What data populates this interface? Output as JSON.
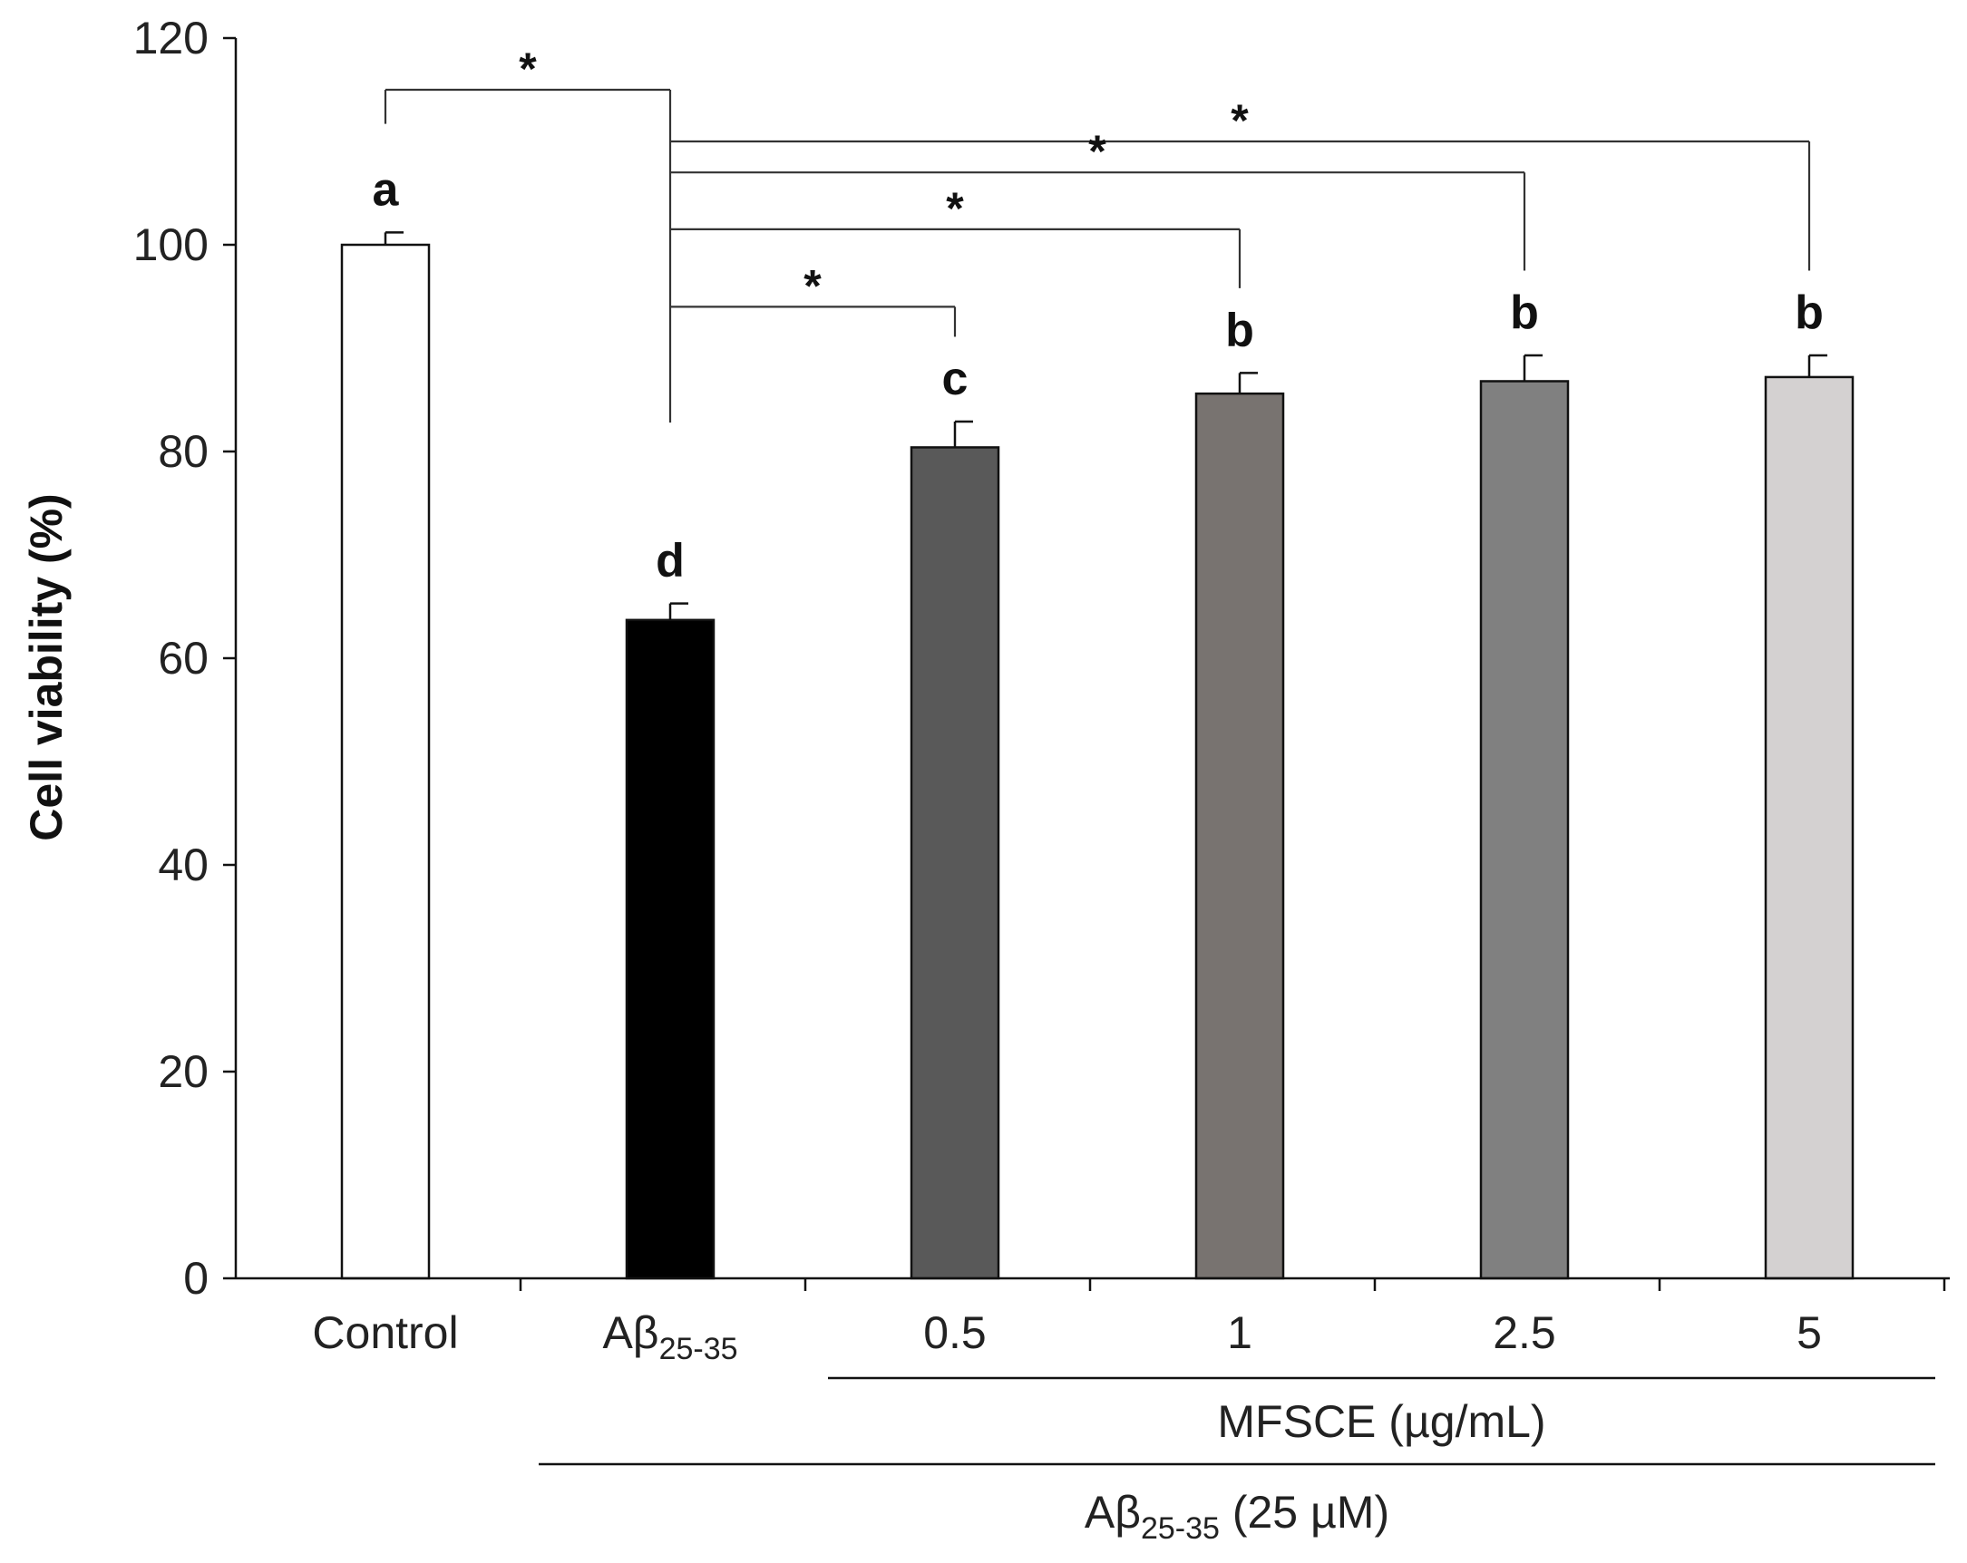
{
  "chart_data": {
    "type": "bar",
    "title": "",
    "xlabel": "",
    "ylabel": "Cell viability (%)",
    "ylim": [
      0,
      120
    ],
    "yticks": [
      0,
      20,
      40,
      60,
      80,
      100,
      120
    ],
    "grid": false,
    "categories": [
      {
        "main": "Control",
        "sub": ""
      },
      {
        "main": "Aβ",
        "sub": "25-35"
      },
      {
        "main": "0.5",
        "sub": ""
      },
      {
        "main": "1",
        "sub": ""
      },
      {
        "main": "2.5",
        "sub": ""
      },
      {
        "main": "5",
        "sub": ""
      }
    ],
    "values": [
      100,
      63.7,
      80.4,
      85.6,
      86.8,
      87.2
    ],
    "errors": [
      1.2,
      1.6,
      2.5,
      2.0,
      2.5,
      2.1
    ],
    "colors": [
      "#ffffff",
      "#000000",
      "#595959",
      "#787370",
      "#808080",
      "#d4d1d1"
    ],
    "significance_letters": [
      "a",
      "d",
      "c",
      "b",
      "b",
      "b"
    ],
    "comparisons": [
      {
        "from": 1,
        "to": 0,
        "level": 115,
        "label": "*"
      },
      {
        "from": 1,
        "to": 5,
        "level": 110,
        "label": "*"
      },
      {
        "from": 1,
        "to": 4,
        "level": 107,
        "label": "*"
      },
      {
        "from": 1,
        "to": 3,
        "level": 101.5,
        "label": "*"
      },
      {
        "from": 1,
        "to": 2,
        "level": 94,
        "label": "*"
      }
    ],
    "group_labels": [
      {
        "main": "MFSCE (µg/mL)",
        "sub": "",
        "after": "",
        "span": [
          2,
          5
        ]
      },
      {
        "main": "Aβ",
        "sub": "25-35",
        "after": " (25 µM)",
        "span": [
          1,
          5
        ]
      }
    ]
  }
}
